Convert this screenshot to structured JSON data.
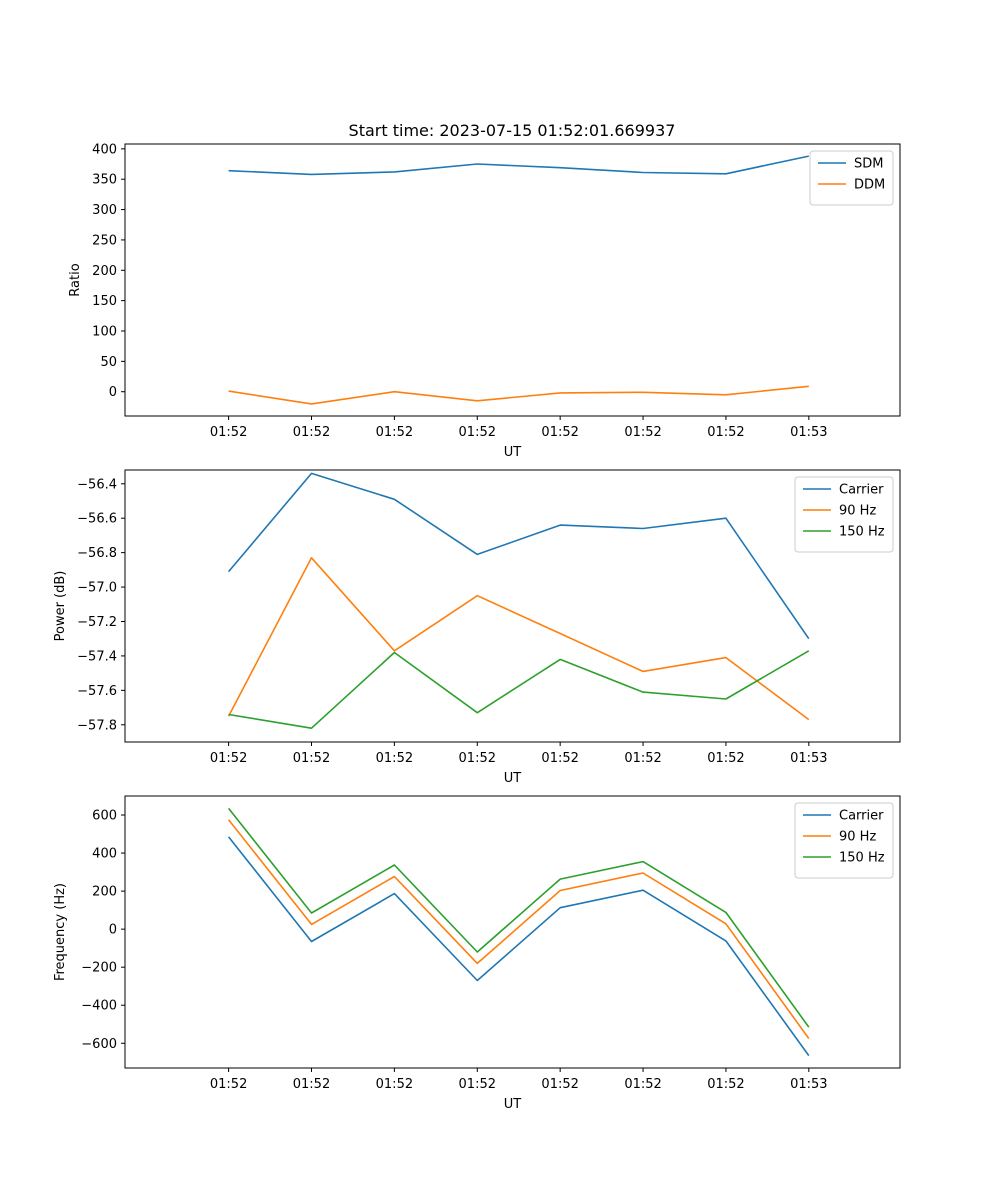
{
  "figure": {
    "title": "Start time: 2023-07-15 01:52:01.669937"
  },
  "chart_data": [
    {
      "type": "line",
      "title": "Start time: 2023-07-15 01:52:01.669937",
      "xlabel": "UT",
      "ylabel": "Ratio",
      "xticks": [
        "01:52",
        "01:52",
        "01:52",
        "01:52",
        "01:52",
        "01:52",
        "01:52"
      ],
      "xlim": [
        -0.125,
        0.81
      ],
      "ylim": [
        -40,
        408
      ],
      "yticks": [
        0,
        50,
        100,
        150,
        200,
        250,
        300,
        350,
        400
      ],
      "x": [
        0.0,
        0.1,
        0.2,
        0.3,
        0.4,
        0.5,
        0.6,
        0.7
      ],
      "legend_position": "top-right",
      "series": [
        {
          "name": "SDM",
          "color": "#1f77b4",
          "values": [
            364,
            358,
            362,
            375,
            369,
            361,
            359,
            388
          ]
        },
        {
          "name": "DDM",
          "color": "#ff7f0e",
          "values": [
            1,
            -20,
            0,
            -15,
            -2,
            -1,
            -5,
            9
          ]
        }
      ]
    },
    {
      "type": "line",
      "xlabel": "UT",
      "ylabel": "Power (dB)",
      "xticks": [
        "01:52",
        "01:52",
        "01:52",
        "01:52",
        "01:52",
        "01:52",
        "01:52"
      ],
      "xlim": [
        -0.125,
        0.81
      ],
      "ylim": [
        -57.9,
        -56.32
      ],
      "yticks": [
        -57.8,
        -57.6,
        -57.4,
        -57.2,
        -57.0,
        -56.8,
        -56.6,
        -56.4
      ],
      "x": [
        0.0,
        0.1,
        0.2,
        0.3,
        0.4,
        0.5,
        0.6,
        0.7
      ],
      "legend_position": "top-right",
      "series": [
        {
          "name": "Carrier",
          "color": "#1f77b4",
          "values": [
            -56.91,
            -56.34,
            -56.49,
            -56.81,
            -56.64,
            -56.66,
            -56.6,
            -57.3
          ]
        },
        {
          "name": "90 Hz",
          "color": "#ff7f0e",
          "values": [
            -57.75,
            -56.83,
            -57.37,
            -57.05,
            -57.27,
            -57.49,
            -57.41,
            -57.77
          ]
        },
        {
          "name": "150 Hz",
          "color": "#2ca02c",
          "values": [
            -57.74,
            -57.82,
            -57.38,
            -57.73,
            -57.42,
            -57.61,
            -57.65,
            -57.37
          ]
        }
      ]
    },
    {
      "type": "line",
      "xlabel": "UT",
      "ylabel": "Frequency (Hz)",
      "xticks": [
        "01:52",
        "01:52",
        "01:52",
        "01:52",
        "01:52",
        "01:52",
        "01:52"
      ],
      "xlim": [
        -0.125,
        0.81
      ],
      "ylim": [
        -730,
        700
      ],
      "yticks": [
        -600,
        -400,
        -200,
        0,
        200,
        400,
        600
      ],
      "x": [
        0.0,
        0.1,
        0.2,
        0.3,
        0.4,
        0.5,
        0.6,
        0.7
      ],
      "legend_position": "top-right",
      "series": [
        {
          "name": "Carrier",
          "color": "#1f77b4",
          "values": [
            485,
            -65,
            187,
            -270,
            113,
            205,
            -62,
            -665
          ]
        },
        {
          "name": "90 Hz",
          "color": "#ff7f0e",
          "values": [
            575,
            25,
            277,
            -180,
            203,
            295,
            28,
            -575
          ]
        },
        {
          "name": "150 Hz",
          "color": "#2ca02c",
          "values": [
            635,
            85,
            337,
            -120,
            263,
            355,
            88,
            -515
          ]
        }
      ]
    }
  ]
}
